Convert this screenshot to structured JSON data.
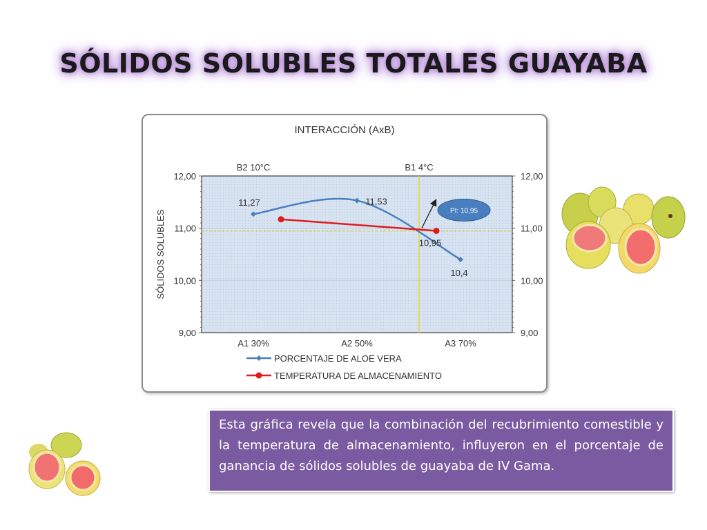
{
  "slide": {
    "title": "SÓLIDOS SOLUBLES TOTALES GUAYABA",
    "description": "Esta gráfica revela que la combinación del recubrimiento comestible y la temperatura de almacenamiento, influyeron en el porcentaje de ganancia de sólidos solubles de guayaba de IV Gama."
  },
  "chart_data": {
    "type": "line",
    "title": "INTERACCIÓN (AxB)",
    "ylabel": "SÓLIDOS SOLUBLES",
    "ylim": [
      9,
      12
    ],
    "y_ticks": [
      "9,00",
      "10,00",
      "11,00",
      "12,00"
    ],
    "grid": true,
    "legend_position": "bottom",
    "x_bottom": {
      "categories": [
        "A1 30%",
        "A2 50%",
        "A3 70%"
      ],
      "positions": [
        1,
        2,
        3
      ]
    },
    "x_top": {
      "categories": [
        "B2 10°C",
        "B1 4°C"
      ],
      "positions": [
        1,
        2.6
      ]
    },
    "series": [
      {
        "name": "PORCENTAJE DE ALOE VERA",
        "color": "#4a7fbf",
        "x": [
          1,
          2,
          3
        ],
        "y": [
          11.27,
          11.53,
          10.4
        ],
        "labels": [
          "11,27",
          "11,53",
          "10,4"
        ]
      },
      {
        "name": "TEMPERATURA DE ALMACENAMIENTO",
        "color": "#e01b1b",
        "x": [
          1,
          2.6
        ],
        "y": [
          11.17,
          10.95
        ],
        "labels": []
      }
    ],
    "intersection": {
      "x": 2.6,
      "y": 10.95,
      "label": "10,95",
      "callout": "PI: 10,95"
    }
  },
  "colors": {
    "title_glow": "#b58ad6",
    "text_box": "#7a5aa0",
    "plot_background": "#d7e3f1",
    "intersection_line": "#e6d23a"
  },
  "icons": [
    "guava-image-right",
    "guava-image-left"
  ]
}
